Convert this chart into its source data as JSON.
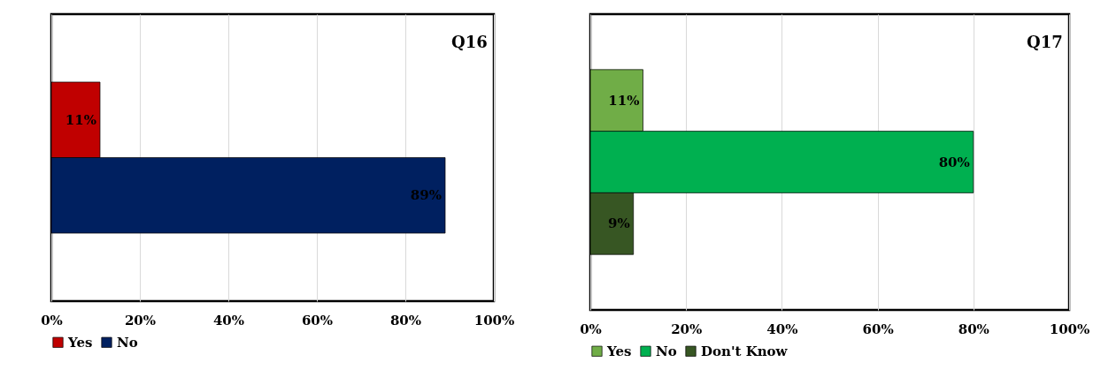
{
  "chart_data": [
    {
      "type": "bar",
      "title": "Q16",
      "orientation": "horizontal",
      "categories": [
        null
      ],
      "xlim": [
        0,
        100
      ],
      "xticks": [
        {
          "value": 0,
          "label": "0%"
        },
        {
          "value": 20,
          "label": "20%"
        },
        {
          "value": 40,
          "label": "40%"
        },
        {
          "value": 60,
          "label": "60%"
        },
        {
          "value": 80,
          "label": "80%"
        },
        {
          "value": 100,
          "label": "100%"
        }
      ],
      "grid": "x",
      "legend": "bottom",
      "series": [
        {
          "name": "Yes",
          "color": "#c00000",
          "values": [
            11
          ],
          "value_labels": [
            "11%"
          ]
        },
        {
          "name": "No",
          "color": "#002060",
          "values": [
            89
          ],
          "value_labels": [
            "89%"
          ]
        }
      ]
    },
    {
      "type": "bar",
      "title": "Q17",
      "orientation": "horizontal",
      "categories": [
        null
      ],
      "xlim": [
        0,
        100
      ],
      "xticks": [
        {
          "value": 0,
          "label": "0%"
        },
        {
          "value": 20,
          "label": "20%"
        },
        {
          "value": 40,
          "label": "40%"
        },
        {
          "value": 60,
          "label": "60%"
        },
        {
          "value": 80,
          "label": "80%"
        },
        {
          "value": 100,
          "label": "100%"
        }
      ],
      "grid": "x",
      "legend": "bottom",
      "series": [
        {
          "name": "Yes",
          "color": "#70ad47",
          "values": [
            11
          ],
          "value_labels": [
            "11%"
          ]
        },
        {
          "name": "No",
          "color": "#00b050",
          "values": [
            80
          ],
          "value_labels": [
            "80%"
          ]
        },
        {
          "name": "Don't Know",
          "color": "#375623",
          "values": [
            9
          ],
          "value_labels": [
            "9%"
          ]
        }
      ]
    }
  ]
}
